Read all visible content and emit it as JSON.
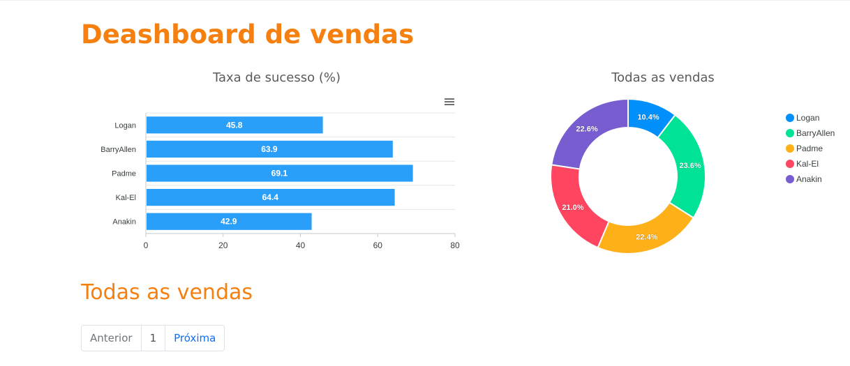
{
  "page": {
    "title": "Deashboard de vendas",
    "section_title": "Todas as vendas"
  },
  "pagination": {
    "prev_label": "Anterior",
    "current_label": "1",
    "next_label": "Próxima"
  },
  "chart_data": [
    {
      "type": "bar",
      "orientation": "horizontal",
      "title": "Taxa de sucesso (%)",
      "categories": [
        "Logan",
        "BarryAllen",
        "Padme",
        "Kal-El",
        "Anakin"
      ],
      "values": [
        45.8,
        63.9,
        69.1,
        64.4,
        42.9
      ],
      "xlim": [
        0,
        80
      ],
      "xticks": [
        0,
        20,
        40,
        60,
        80
      ],
      "color": "#2a9ffa",
      "grid": true,
      "data_labels": true
    },
    {
      "type": "pie",
      "variant": "donut",
      "title": "Todas as vendas",
      "labels": [
        "Logan",
        "BarryAllen",
        "Padme",
        "Kal-El",
        "Anakin"
      ],
      "values": [
        10.4,
        23.6,
        22.4,
        21.0,
        22.6
      ],
      "colors": [
        "#008ffb",
        "#00e396",
        "#feb019",
        "#ff4560",
        "#775dd0"
      ],
      "legend": "right",
      "data_labels": true
    }
  ]
}
